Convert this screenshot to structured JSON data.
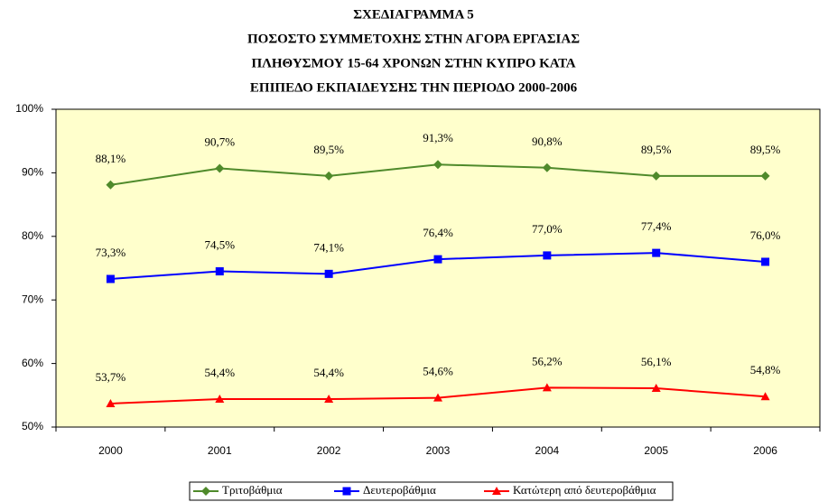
{
  "chart_data": {
    "type": "line",
    "title": [
      "ΣΧΕΔΙΑΓΡΑΜΜΑ 5",
      "ΠΟΣΟΣΤΟ ΣΥΜΜΕΤΟΧΗΣ ΣΤΗΝ ΑΓΟΡΑ ΕΡΓΑΣΙΑΣ",
      "ΠΛΗΘΥΣΜΟΥ 15-64 ΧΡΟΝΩΝ ΣΤΗΝ ΚΥΠΡΟ ΚΑΤΑ",
      "ΕΠΙΠΕΔΟ ΕΚΠΑΙΔΕΥΣΗΣ ΤΗΝ ΠΕΡΙΟΔΟ 2000-2006"
    ],
    "categories": [
      "2000",
      "2001",
      "2002",
      "2003",
      "2004",
      "2005",
      "2006"
    ],
    "series": [
      {
        "name": "Τριτοβάθμια",
        "color": "#4f8a2b",
        "marker": "diamond",
        "values": [
          88.1,
          90.7,
          89.5,
          91.3,
          90.8,
          89.5,
          89.5
        ],
        "value_labels": [
          "88,1%",
          "90,7%",
          "89,5%",
          "91,3%",
          "90,8%",
          "89,5%",
          "89,5%"
        ]
      },
      {
        "name": "Δευτεροβάθμια",
        "color": "#0000ff",
        "marker": "square",
        "values": [
          73.3,
          74.5,
          74.1,
          76.4,
          77.0,
          77.4,
          76.0
        ],
        "value_labels": [
          "73,3%",
          "74,5%",
          "74,1%",
          "76,4%",
          "77,0%",
          "77,4%",
          "76,0%"
        ]
      },
      {
        "name": "Κατώτερη από δευτεροβάθμια",
        "color": "#ff0000",
        "marker": "triangle",
        "values": [
          53.7,
          54.4,
          54.4,
          54.6,
          56.2,
          56.1,
          54.8
        ],
        "value_labels": [
          "53,7%",
          "54,4%",
          "54,4%",
          "54,6%",
          "56,2%",
          "56,1%",
          "54,8%"
        ]
      }
    ],
    "ylim": [
      50,
      100
    ],
    "yticks": [
      {
        "value": 50,
        "label": "50%"
      },
      {
        "value": 60,
        "label": "60%"
      },
      {
        "value": 70,
        "label": "70%"
      },
      {
        "value": 80,
        "label": "80%"
      },
      {
        "value": 90,
        "label": "90%"
      },
      {
        "value": 100,
        "label": "100%"
      }
    ],
    "plot_background": "#ffffcc",
    "legend": "bottom"
  }
}
